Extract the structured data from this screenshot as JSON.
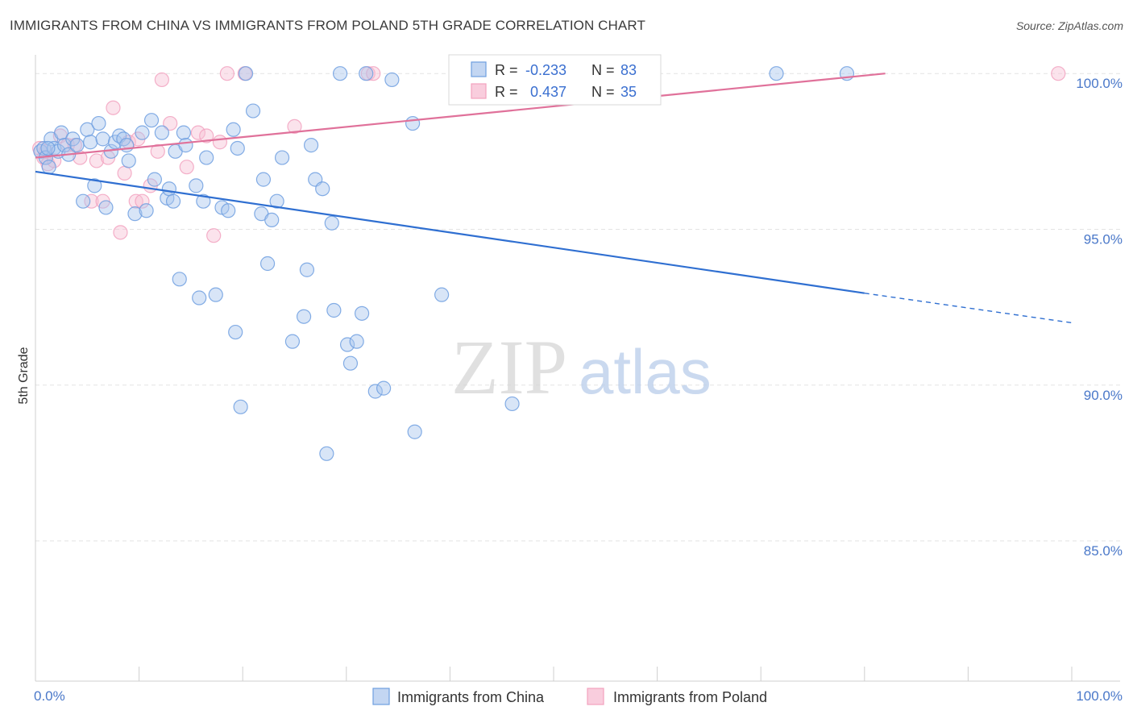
{
  "title": "IMMIGRANTS FROM CHINA VS IMMIGRANTS FROM POLAND 5TH GRADE CORRELATION CHART",
  "source": "Source: ZipAtlas.com",
  "watermark": {
    "zip": "ZIP",
    "atlas": "atlas"
  },
  "colors": {
    "china": "#6f9fe0",
    "poland": "#f2a2bf",
    "china_line": "#2f6fd1",
    "poland_line": "#e0719a"
  },
  "chart_data": {
    "type": "scatter",
    "title": "IMMIGRANTS FROM CHINA VS IMMIGRANTS FROM POLAND 5TH GRADE CORRELATION CHART",
    "xlabel": "",
    "ylabel": "5th Grade",
    "xlim": [
      0,
      100
    ],
    "ylim": [
      80.5,
      100.6
    ],
    "x_tick_labels": [
      {
        "value": 0,
        "label": "0.0%"
      },
      {
        "value": 100,
        "label": "100.0%"
      }
    ],
    "y_ticks": [
      {
        "value": 100,
        "label": "100.0%"
      },
      {
        "value": 95,
        "label": "95.0%"
      },
      {
        "value": 90,
        "label": "90.0%"
      },
      {
        "value": 85,
        "label": "85.0%"
      }
    ],
    "legend": [
      {
        "name": "Immigrants from China",
        "r_label": "R =",
        "r": "-0.233",
        "n_label": "N =",
        "n": "83"
      },
      {
        "name": "Immigrants from Poland",
        "r_label": "R =",
        "r": "0.437",
        "n_label": "N =",
        "n": "35"
      }
    ],
    "series": [
      {
        "name": "Immigrants from China",
        "trend": {
          "x0": 0,
          "y0": 96.85,
          "x1": 80,
          "y1": 92.95,
          "dash_to_x": 100,
          "dash_to_y": 92.0
        },
        "points": [
          [
            0.5,
            97.5
          ],
          [
            0.8,
            97.6
          ],
          [
            1.0,
            97.3
          ],
          [
            1.3,
            97.0
          ],
          [
            1.5,
            97.9
          ],
          [
            1.8,
            97.6
          ],
          [
            2.2,
            97.5
          ],
          [
            2.5,
            98.1
          ],
          [
            2.8,
            97.7
          ],
          [
            3.2,
            97.4
          ],
          [
            3.6,
            97.9
          ],
          [
            4.0,
            97.7
          ],
          [
            4.6,
            95.9
          ],
          [
            5.0,
            98.2
          ],
          [
            5.3,
            97.8
          ],
          [
            5.7,
            96.4
          ],
          [
            6.1,
            98.4
          ],
          [
            6.5,
            97.9
          ],
          [
            6.8,
            95.7
          ],
          [
            7.3,
            97.5
          ],
          [
            7.7,
            97.8
          ],
          [
            8.1,
            98.0
          ],
          [
            8.5,
            97.9
          ],
          [
            8.8,
            97.7
          ],
          [
            9.0,
            97.2
          ],
          [
            9.6,
            95.5
          ],
          [
            10.3,
            98.1
          ],
          [
            10.7,
            95.6
          ],
          [
            11.2,
            98.5
          ],
          [
            11.5,
            96.6
          ],
          [
            12.2,
            98.1
          ],
          [
            12.7,
            96.0
          ],
          [
            12.9,
            96.3
          ],
          [
            13.3,
            95.9
          ],
          [
            13.5,
            97.5
          ],
          [
            13.9,
            93.4
          ],
          [
            14.3,
            98.1
          ],
          [
            14.5,
            97.7
          ],
          [
            15.5,
            96.4
          ],
          [
            15.8,
            92.8
          ],
          [
            16.2,
            95.9
          ],
          [
            16.5,
            97.3
          ],
          [
            17.4,
            92.9
          ],
          [
            18.0,
            95.7
          ],
          [
            18.6,
            95.6
          ],
          [
            19.1,
            98.2
          ],
          [
            19.3,
            91.7
          ],
          [
            19.5,
            97.6
          ],
          [
            19.8,
            89.3
          ],
          [
            20.3,
            100.0
          ],
          [
            21.0,
            98.8
          ],
          [
            21.8,
            95.5
          ],
          [
            22.0,
            96.6
          ],
          [
            22.4,
            93.9
          ],
          [
            22.8,
            95.3
          ],
          [
            23.3,
            95.9
          ],
          [
            23.8,
            97.3
          ],
          [
            24.8,
            91.4
          ],
          [
            25.9,
            92.2
          ],
          [
            26.2,
            93.7
          ],
          [
            26.6,
            97.7
          ],
          [
            27.0,
            96.6
          ],
          [
            27.7,
            96.3
          ],
          [
            28.1,
            87.8
          ],
          [
            28.6,
            95.2
          ],
          [
            28.8,
            92.4
          ],
          [
            29.4,
            100.0
          ],
          [
            30.1,
            91.3
          ],
          [
            30.4,
            90.7
          ],
          [
            31.0,
            91.4
          ],
          [
            31.5,
            92.3
          ],
          [
            31.9,
            100.0
          ],
          [
            32.8,
            89.8
          ],
          [
            33.6,
            89.9
          ],
          [
            34.4,
            99.8
          ],
          [
            36.4,
            98.4
          ],
          [
            36.6,
            88.5
          ],
          [
            39.2,
            92.9
          ],
          [
            41.0,
            100.0
          ],
          [
            46.0,
            89.4
          ],
          [
            71.5,
            100.0
          ],
          [
            78.3,
            100.0
          ],
          [
            1.2,
            97.6
          ]
        ]
      },
      {
        "name": "Immigrants from Poland",
        "trend": {
          "x0": 0,
          "y0": 97.3,
          "x1": 82,
          "y1": 100.0
        },
        "points": [
          [
            0.4,
            97.6
          ],
          [
            0.8,
            97.3
          ],
          [
            1.2,
            97.1
          ],
          [
            1.8,
            97.2
          ],
          [
            2.4,
            98.0
          ],
          [
            3.1,
            97.7
          ],
          [
            3.8,
            97.7
          ],
          [
            4.3,
            97.3
          ],
          [
            5.4,
            95.9
          ],
          [
            5.9,
            97.2
          ],
          [
            6.5,
            95.9
          ],
          [
            7.0,
            97.3
          ],
          [
            7.5,
            98.9
          ],
          [
            8.2,
            94.9
          ],
          [
            8.6,
            96.8
          ],
          [
            9.0,
            97.8
          ],
          [
            9.7,
            95.9
          ],
          [
            9.9,
            97.9
          ],
          [
            10.3,
            95.9
          ],
          [
            11.1,
            96.4
          ],
          [
            11.8,
            97.5
          ],
          [
            12.2,
            99.8
          ],
          [
            13.0,
            98.4
          ],
          [
            14.6,
            97.0
          ],
          [
            15.7,
            98.1
          ],
          [
            16.5,
            98.0
          ],
          [
            17.2,
            94.8
          ],
          [
            17.8,
            97.8
          ],
          [
            18.5,
            100.0
          ],
          [
            20.2,
            100.0
          ],
          [
            25.0,
            98.3
          ],
          [
            32.1,
            100.0
          ],
          [
            32.6,
            100.0
          ],
          [
            98.7,
            100.0
          ],
          [
            1.0,
            97.5
          ]
        ]
      }
    ]
  }
}
